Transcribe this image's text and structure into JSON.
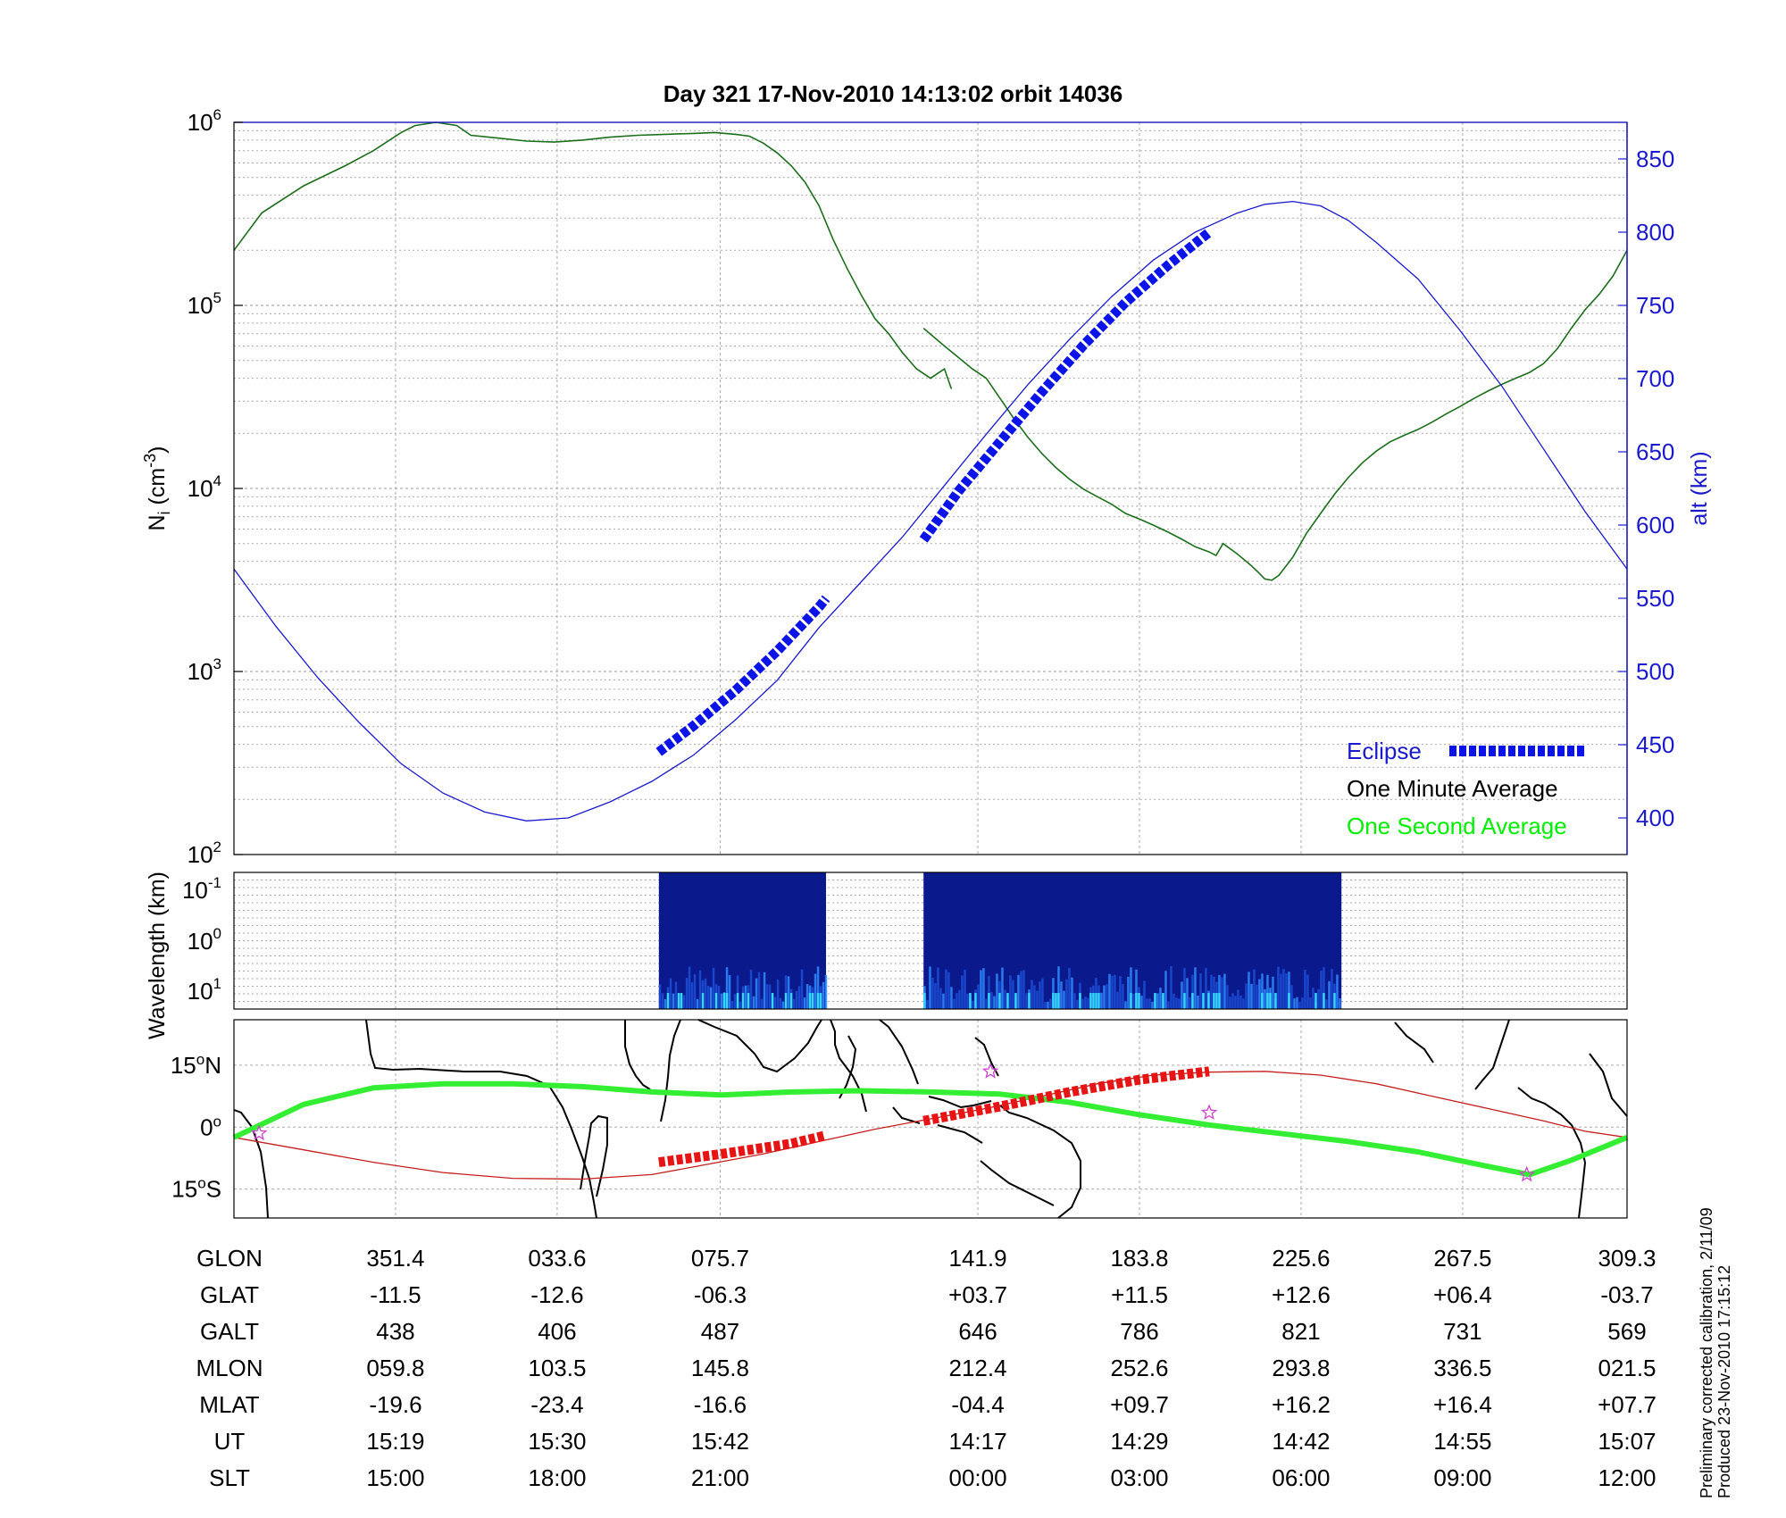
{
  "title": "Day 321  17-Nov-2010 14:13:02   orbit 14036",
  "footnote": [
    "Preliminary corrected calibration, 2/11/09",
    "Produced 23-Nov-2010 17:15:12"
  ],
  "colors": {
    "one_minute": "#1b6e1b",
    "one_second": "#00ee00",
    "altitude": "#1a1acc",
    "eclipse": "#0a14e6",
    "ground_track": "#c41e1e",
    "eclipse_track": "#e61414",
    "mag_equator": "#33ee33",
    "marker": "#cc44cc"
  },
  "chart_data": [
    {
      "type": "line",
      "panel": "density",
      "ylabel": "N",
      "ylabel_sub": "i",
      "ylabel_unit": "(cm",
      "ylabel_sup": "-3",
      "ylabel_close": ")",
      "y_scale": "log",
      "ylim": [
        100,
        1000000
      ],
      "yticks": [
        {
          "base": "10",
          "exp": "2"
        },
        {
          "base": "10",
          "exp": "3"
        },
        {
          "base": "10",
          "exp": "4"
        },
        {
          "base": "10",
          "exp": "5"
        },
        {
          "base": "10",
          "exp": "6"
        }
      ],
      "xlim": [
        0,
        1
      ],
      "y2label": "alt (km)",
      "y2lim": [
        375,
        875
      ],
      "y2ticks": [
        "400",
        "450",
        "500",
        "550",
        "600",
        "650",
        "700",
        "750",
        "800",
        "850"
      ],
      "legend": [
        {
          "name": "Eclipse"
        },
        {
          "name": "One Minute Average"
        },
        {
          "name": "One Second Average"
        }
      ],
      "legend_placement": "bottom-right",
      "grid": true,
      "series": [
        {
          "name": "One Minute Average",
          "segments": [
            [
              [
                0.0,
                200000
              ],
              [
                0.02,
                320000
              ],
              [
                0.05,
                450000
              ],
              [
                0.08,
                580000
              ],
              [
                0.1,
                700000
              ],
              [
                0.12,
                880000
              ],
              [
                0.13,
                960000
              ],
              [
                0.145,
                1000000
              ],
              [
                0.16,
                960000
              ],
              [
                0.17,
                850000
              ],
              [
                0.19,
                820000
              ],
              [
                0.21,
                790000
              ],
              [
                0.23,
                780000
              ],
              [
                0.25,
                800000
              ],
              [
                0.27,
                830000
              ],
              [
                0.29,
                850000
              ],
              [
                0.31,
                860000
              ],
              [
                0.33,
                870000
              ],
              [
                0.345,
                880000
              ],
              [
                0.36,
                860000
              ],
              [
                0.37,
                840000
              ],
              [
                0.38,
                770000
              ],
              [
                0.39,
                680000
              ],
              [
                0.4,
                580000
              ],
              [
                0.41,
                470000
              ],
              [
                0.42,
                350000
              ],
              [
                0.43,
                230000
              ],
              [
                0.44,
                160000
              ],
              [
                0.45,
                115000
              ],
              [
                0.46,
                85000
              ],
              [
                0.47,
                70000
              ],
              [
                0.48,
                55000
              ],
              [
                0.49,
                45000
              ],
              [
                0.5,
                40000
              ],
              [
                0.51,
                45000
              ],
              [
                0.515,
                35000
              ]
            ],
            [
              [
                0.495,
                75000
              ],
              [
                0.51,
                60000
              ],
              [
                0.52,
                52000
              ],
              [
                0.53,
                45000
              ],
              [
                0.54,
                40000
              ],
              [
                0.55,
                31000
              ],
              [
                0.56,
                24000
              ],
              [
                0.57,
                19000
              ],
              [
                0.58,
                15500
              ],
              [
                0.59,
                13000
              ],
              [
                0.6,
                11200
              ],
              [
                0.61,
                9900
              ],
              [
                0.62,
                9000
              ],
              [
                0.63,
                8200
              ],
              [
                0.64,
                7300
              ],
              [
                0.65,
                6800
              ],
              [
                0.66,
                6300
              ],
              [
                0.67,
                5800
              ],
              [
                0.68,
                5300
              ],
              [
                0.69,
                4800
              ],
              [
                0.7,
                4500
              ],
              [
                0.705,
                4300
              ],
              [
                0.71,
                5000
              ],
              [
                0.72,
                4400
              ],
              [
                0.73,
                3800
              ],
              [
                0.735,
                3500
              ],
              [
                0.74,
                3200
              ],
              [
                0.745,
                3150
              ],
              [
                0.75,
                3350
              ],
              [
                0.76,
                4200
              ],
              [
                0.77,
                5700
              ],
              [
                0.78,
                7300
              ],
              [
                0.79,
                9300
              ],
              [
                0.8,
                11500
              ],
              [
                0.81,
                13800
              ],
              [
                0.82,
                16000
              ],
              [
                0.83,
                18000
              ],
              [
                0.84,
                19500
              ],
              [
                0.85,
                21000
              ],
              [
                0.86,
                23000
              ],
              [
                0.87,
                25500
              ],
              [
                0.88,
                28000
              ],
              [
                0.89,
                31000
              ],
              [
                0.9,
                34000
              ],
              [
                0.91,
                37000
              ],
              [
                0.92,
                40000
              ],
              [
                0.93,
                43000
              ],
              [
                0.94,
                48000
              ],
              [
                0.95,
                58000
              ],
              [
                0.96,
                75000
              ],
              [
                0.97,
                95000
              ],
              [
                0.98,
                115000
              ],
              [
                0.99,
                145000
              ],
              [
                1.0,
                200000
              ]
            ]
          ]
        },
        {
          "name": "Altitude",
          "points": [
            [
              0.0,
              570
            ],
            [
              0.03,
              531
            ],
            [
              0.06,
              496
            ],
            [
              0.09,
              465
            ],
            [
              0.12,
              437
            ],
            [
              0.15,
              417
            ],
            [
              0.18,
              404
            ],
            [
              0.21,
              398
            ],
            [
              0.24,
              400
            ],
            [
              0.27,
              411
            ],
            [
              0.3,
              425
            ],
            [
              0.33,
              443
            ],
            [
              0.36,
              467
            ],
            [
              0.39,
              494
            ],
            [
              0.42,
              530
            ],
            [
              0.45,
              561
            ],
            [
              0.48,
              592
            ],
            [
              0.51,
              627
            ],
            [
              0.54,
              662
            ],
            [
              0.57,
              696
            ],
            [
              0.6,
              727
            ],
            [
              0.63,
              756
            ],
            [
              0.66,
              781
            ],
            [
              0.69,
              800
            ],
            [
              0.72,
              813
            ],
            [
              0.74,
              819
            ],
            [
              0.76,
              821
            ],
            [
              0.78,
              818
            ],
            [
              0.8,
              808
            ],
            [
              0.82,
              793
            ],
            [
              0.85,
              768
            ],
            [
              0.88,
              733
            ],
            [
              0.91,
              695
            ],
            [
              0.94,
              652
            ],
            [
              0.97,
              609
            ],
            [
              1.0,
              570
            ]
          ]
        },
        {
          "name": "Eclipse",
          "segments": [
            [
              [
                0.305,
                445
              ],
              [
                0.33,
                463
              ],
              [
                0.36,
                487
              ],
              [
                0.39,
                514
              ],
              [
                0.42,
                544
              ],
              [
                0.425,
                550
              ]
            ],
            [
              [
                0.495,
                590
              ],
              [
                0.52,
                623
              ],
              [
                0.55,
                657
              ],
              [
                0.58,
                691
              ],
              [
                0.61,
                723
              ],
              [
                0.64,
                752
              ],
              [
                0.67,
                777
              ],
              [
                0.7,
                800
              ]
            ]
          ]
        }
      ]
    },
    {
      "type": "heatmap",
      "panel": "spectrogram",
      "ylabel": "Wavelength (km)",
      "yticks": [
        {
          "base": "10",
          "exp": "-1"
        },
        {
          "base": "10",
          "exp": "0"
        },
        {
          "base": "10",
          "exp": "1"
        }
      ],
      "blocks": [
        [
          0.305,
          0.425
        ],
        [
          0.495,
          0.795
        ]
      ]
    },
    {
      "type": "map",
      "panel": "ground-track",
      "yticks": [
        {
          "label": "15",
          "deg": "o",
          "hemi": "N"
        },
        {
          "label": "0",
          "deg": "o",
          "hemi": ""
        },
        {
          "label": "15",
          "deg": "o",
          "hemi": "S"
        }
      ],
      "lat_lim": [
        -22,
        26
      ],
      "series": [
        {
          "name": "Ground Track",
          "points": [
            [
              0.0,
              -2.5
            ],
            [
              0.05,
              -5.5
            ],
            [
              0.1,
              -8.5
            ],
            [
              0.15,
              -11
            ],
            [
              0.2,
              -12.4
            ],
            [
              0.25,
              -12.6
            ],
            [
              0.3,
              -11.5
            ],
            [
              0.34,
              -9
            ],
            [
              0.38,
              -6.5
            ],
            [
              0.42,
              -3.5
            ],
            [
              0.46,
              -0.5
            ],
            [
              0.5,
              2
            ],
            [
              0.54,
              4.5
            ],
            [
              0.58,
              7.5
            ],
            [
              0.62,
              10.5
            ],
            [
              0.66,
              12.6
            ],
            [
              0.7,
              13.3
            ],
            [
              0.74,
              13.5
            ],
            [
              0.78,
              12.6
            ],
            [
              0.82,
              10.5
            ],
            [
              0.86,
              7.5
            ],
            [
              0.9,
              4.5
            ],
            [
              0.94,
              1.5
            ],
            [
              0.97,
              -1
            ],
            [
              1.0,
              -2.5
            ]
          ]
        },
        {
          "name": "Eclipse Track",
          "segments": [
            [
              [
                0.305,
                -8.5
              ],
              [
                0.35,
                -6.5
              ],
              [
                0.4,
                -4
              ],
              [
                0.425,
                -2
              ]
            ],
            [
              [
                0.495,
                1.5
              ],
              [
                0.55,
                5
              ],
              [
                0.6,
                8.5
              ],
              [
                0.65,
                11.5
              ],
              [
                0.7,
                13.5
              ]
            ]
          ]
        },
        {
          "name": "Magnetic Equator",
          "points": [
            [
              0.0,
              -2.5
            ],
            [
              0.05,
              5.5
            ],
            [
              0.1,
              9.5
            ],
            [
              0.15,
              10.5
            ],
            [
              0.2,
              10.5
            ],
            [
              0.25,
              9.8
            ],
            [
              0.3,
              8.5
            ],
            [
              0.35,
              7.8
            ],
            [
              0.4,
              8.5
            ],
            [
              0.45,
              8.8
            ],
            [
              0.5,
              8.5
            ],
            [
              0.55,
              8
            ],
            [
              0.6,
              6
            ],
            [
              0.65,
              3
            ],
            [
              0.7,
              0.5
            ],
            [
              0.75,
              -1.5
            ],
            [
              0.8,
              -3.5
            ],
            [
              0.85,
              -6
            ],
            [
              0.9,
              -9.5
            ],
            [
              0.93,
              -11.5
            ],
            [
              0.96,
              -8
            ],
            [
              1.0,
              -2.5
            ]
          ]
        }
      ],
      "markers": [
        [
          0.018,
          -1.5
        ],
        [
          0.543,
          13.5
        ],
        [
          0.7,
          3.5
        ],
        [
          0.928,
          -11.5
        ]
      ]
    },
    {
      "type": "table",
      "panel": "ephemeris",
      "columns": [
        0.116,
        0.232,
        0.349,
        0.534,
        0.65,
        0.766,
        0.882,
        1.0
      ],
      "rows": [
        {
          "label": "GLON",
          "values": [
            "351.4",
            "033.6",
            "075.7",
            "141.9",
            "183.8",
            "225.6",
            "267.5",
            "309.3"
          ]
        },
        {
          "label": "GLAT",
          "values": [
            "-11.5",
            "-12.6",
            "-06.3",
            "+03.7",
            "+11.5",
            "+12.6",
            "+06.4",
            "-03.7"
          ]
        },
        {
          "label": "GALT",
          "values": [
            "438",
            "406",
            "487",
            "646",
            "786",
            "821",
            "731",
            "569"
          ]
        },
        {
          "label": "MLON",
          "values": [
            "059.8",
            "103.5",
            "145.8",
            "212.4",
            "252.6",
            "293.8",
            "336.5",
            "021.5"
          ]
        },
        {
          "label": "MLAT",
          "values": [
            "-19.6",
            "-23.4",
            "-16.6",
            "-04.4",
            "+09.7",
            "+16.2",
            "+16.4",
            "+07.7"
          ]
        },
        {
          "label": "UT",
          "values": [
            "15:19",
            "15:30",
            "15:42",
            "14:17",
            "14:29",
            "14:42",
            "14:55",
            "15:07"
          ]
        },
        {
          "label": "SLT",
          "values": [
            "15:00",
            "18:00",
            "21:00",
            "00:00",
            "03:00",
            "06:00",
            "09:00",
            "12:00"
          ]
        }
      ]
    }
  ]
}
